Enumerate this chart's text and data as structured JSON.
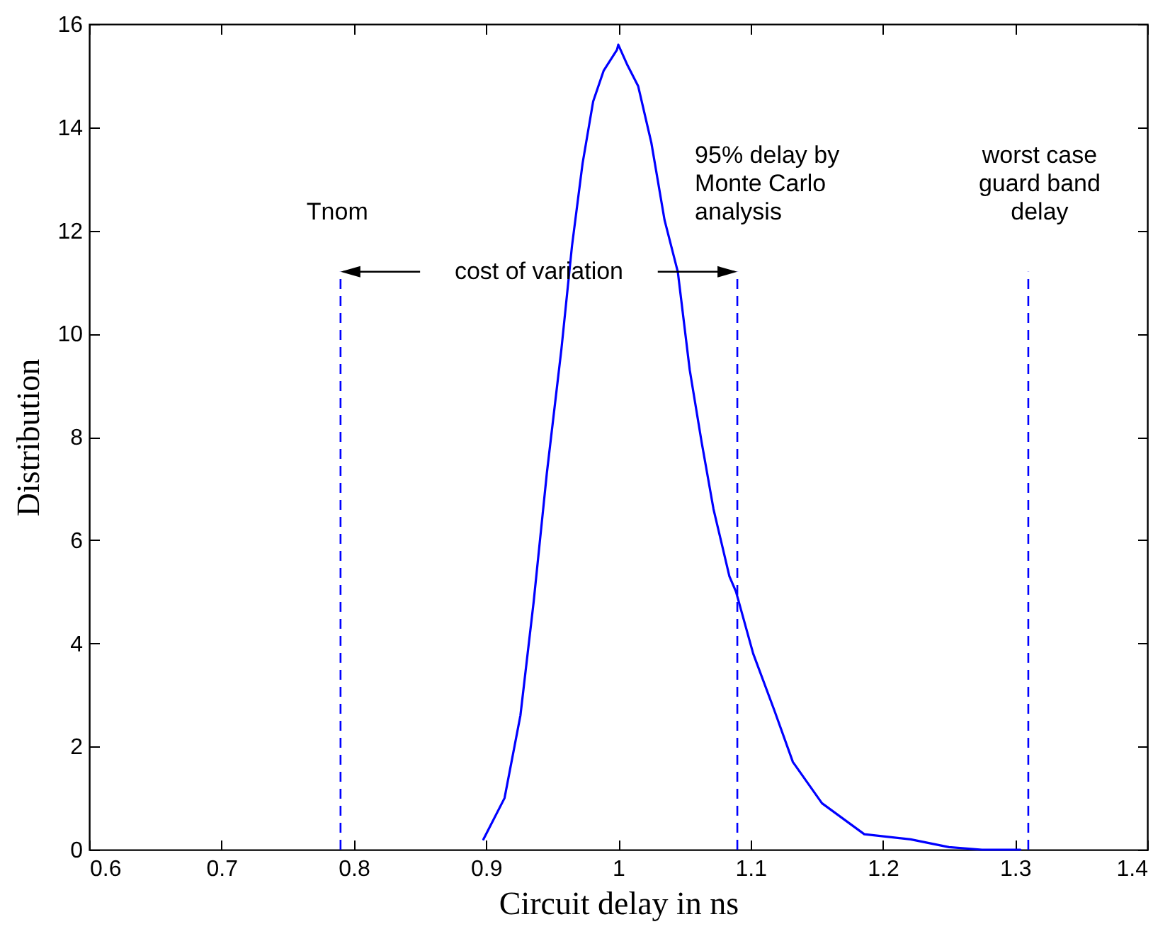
{
  "chart_data": {
    "type": "line",
    "xlabel": "Circuit delay in ns",
    "ylabel": "Distribution",
    "series": [
      {
        "color": "#0000ff",
        "x": [
          0.898,
          0.914,
          0.926,
          0.936,
          0.946,
          0.957,
          0.965,
          0.973,
          0.981,
          0.989,
          0.999,
          1.0,
          1.007,
          1.015,
          1.025,
          1.035,
          1.045,
          1.054,
          1.063,
          1.072,
          1.084,
          1.089,
          1.102,
          1.118,
          1.132,
          1.154,
          1.186,
          1.221,
          1.25,
          1.275,
          1.304
        ],
        "values": [
          0.2,
          1.0,
          2.6,
          4.8,
          7.3,
          9.7,
          11.7,
          13.3,
          14.5,
          15.1,
          15.5,
          15.6,
          15.2,
          14.8,
          13.7,
          12.2,
          11.2,
          9.3,
          7.9,
          6.6,
          5.3,
          5.0,
          3.8,
          2.7,
          1.7,
          0.9,
          0.3,
          0.2,
          0.05,
          0,
          0
        ]
      }
    ],
    "xlim": [
      0.6,
      1.4
    ],
    "xticks": [
      0.6,
      0.7,
      0.8,
      0.9,
      1,
      1.1,
      1.2,
      1.3,
      1.4
    ],
    "ylim": [
      0,
      16
    ],
    "yticks": [
      0,
      2,
      4,
      6,
      8,
      10,
      12,
      14,
      16
    ],
    "grid": false,
    "marker": "none",
    "line_style": "solid",
    "ref_lines": [
      {
        "axis": "x",
        "value": 0.79,
        "label": "Tnom",
        "color": "#0000ff",
        "line_style": "dashed"
      },
      {
        "axis": "x",
        "value": 1.09,
        "label": "95% delay by\nMonte Carlo\nanalysis",
        "color": "#0000ff",
        "line_style": "dashed"
      },
      {
        "axis": "x",
        "value": 1.31,
        "label": "worst case\nguard band\ndelay",
        "color": "#0000ff",
        "line_style": "dashed"
      }
    ],
    "annotations": [
      "cost of variation"
    ]
  }
}
